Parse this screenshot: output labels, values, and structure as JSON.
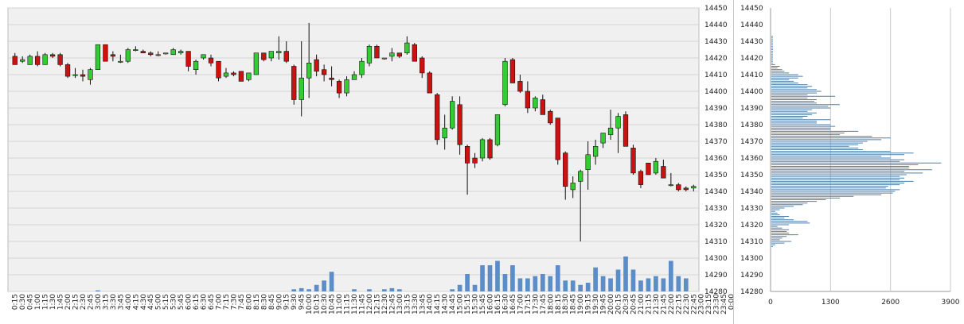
{
  "chart_data": [
    {
      "type": "candlestick",
      "ylim": [
        14280,
        14450
      ],
      "y_ticks": [
        14280,
        14290,
        14300,
        14310,
        14320,
        14330,
        14340,
        14350,
        14360,
        14370,
        14380,
        14390,
        14400,
        14410,
        14420,
        14430,
        14440,
        14450
      ],
      "x_labels": [
        "0:15",
        "0:30",
        "0:45",
        "1:00",
        "1:15",
        "1:30",
        "1:45",
        "2:00",
        "2:15",
        "2:30",
        "2:45",
        "3:00",
        "3:15",
        "3:30",
        "3:45",
        "4:00",
        "4:15",
        "4:30",
        "4:45",
        "5:00",
        "5:15",
        "5:30",
        "5:45",
        "6:00",
        "6:15",
        "6:30",
        "6:45",
        "7:00",
        "7:15",
        "7:30",
        "7:45",
        "8:00",
        "8:15",
        "8:30",
        "8:45",
        "9:00",
        "9:15",
        "9:30",
        "9:45",
        "10:00",
        "10:15",
        "10:30",
        "10:45",
        "11:00",
        "11:15",
        "11:30",
        "11:45",
        "12:00",
        "12:15",
        "12:30",
        "12:45",
        "13:00",
        "13:15",
        "13:30",
        "13:45",
        "14:00",
        "14:15",
        "14:30",
        "14:45",
        "15:00",
        "15:15",
        "15:30",
        "15:45",
        "16:00",
        "16:15",
        "16:30",
        "16:45",
        "17:00",
        "17:15",
        "17:30",
        "17:45",
        "18:00",
        "18:15",
        "18:30",
        "18:45",
        "19:00",
        "19:15",
        "19:30",
        "19:45",
        "20:00",
        "20:15",
        "20:30",
        "20:45",
        "21:00",
        "21:15",
        "21:30",
        "21:45",
        "22:00",
        "22:15",
        "22:30",
        "22:45",
        "23:00",
        "23:15",
        "23:30",
        "23:45",
        "0:00"
      ],
      "candles": [
        {
          "o": 14421,
          "h": 14423,
          "l": 14416,
          "c": 14416
        },
        {
          "o": 14418,
          "h": 14421,
          "l": 14417,
          "c": 14419
        },
        {
          "o": 14416,
          "h": 14422,
          "l": 14416,
          "c": 14421
        },
        {
          "o": 14421,
          "h": 14424,
          "l": 14415,
          "c": 14416
        },
        {
          "o": 14416,
          "h": 14423,
          "l": 14416,
          "c": 14422
        },
        {
          "o": 14422,
          "h": 14423,
          "l": 14420,
          "c": 14421
        },
        {
          "o": 14422,
          "h": 14423,
          "l": 14415,
          "c": 14416
        },
        {
          "o": 14416,
          "h": 14417,
          "l": 14408,
          "c": 14409
        },
        {
          "o": 14410,
          "h": 14414,
          "l": 14408,
          "c": 14410
        },
        {
          "o": 14410,
          "h": 14413,
          "l": 14406,
          "c": 14409
        },
        {
          "o": 14407,
          "h": 14414,
          "l": 14404,
          "c": 14413
        },
        {
          "o": 14413,
          "h": 14428,
          "l": 14413,
          "c": 14428
        },
        {
          "o": 14428,
          "h": 14428,
          "l": 14418,
          "c": 14418
        },
        {
          "o": 14422,
          "h": 14424,
          "l": 14418,
          "c": 14421
        },
        {
          "o": 14418,
          "h": 14422,
          "l": 14417,
          "c": 14418
        },
        {
          "o": 14418,
          "h": 14426,
          "l": 14417,
          "c": 14425
        },
        {
          "o": 14425,
          "h": 14427,
          "l": 14424,
          "c": 14425
        },
        {
          "o": 14424,
          "h": 14425,
          "l": 14423,
          "c": 14423
        },
        {
          "o": 14423,
          "h": 14424,
          "l": 14421,
          "c": 14422
        },
        {
          "o": 14422,
          "h": 14424,
          "l": 14421,
          "c": 14422
        },
        {
          "o": 14423,
          "h": 14423,
          "l": 14422,
          "c": 14423
        },
        {
          "o": 14422,
          "h": 14426,
          "l": 14422,
          "c": 14425
        },
        {
          "o": 14423,
          "h": 14425,
          "l": 14422,
          "c": 14424
        },
        {
          "o": 14424,
          "h": 14424,
          "l": 14412,
          "c": 14415
        },
        {
          "o": 14413,
          "h": 14419,
          "l": 14410,
          "c": 14418
        },
        {
          "o": 14420,
          "h": 14422,
          "l": 14419,
          "c": 14422
        },
        {
          "o": 14420,
          "h": 14422,
          "l": 14415,
          "c": 14417
        },
        {
          "o": 14418,
          "h": 14418,
          "l": 14406,
          "c": 14408
        },
        {
          "o": 14409,
          "h": 14414,
          "l": 14408,
          "c": 14411
        },
        {
          "o": 14411,
          "h": 14412,
          "l": 14409,
          "c": 14410
        },
        {
          "o": 14412,
          "h": 14412,
          "l": 14406,
          "c": 14406
        },
        {
          "o": 14407,
          "h": 14411,
          "l": 14406,
          "c": 14411
        },
        {
          "o": 14410,
          "h": 14423,
          "l": 14410,
          "c": 14423
        },
        {
          "o": 14423,
          "h": 14423,
          "l": 14418,
          "c": 14419
        },
        {
          "o": 14420,
          "h": 14424,
          "l": 14418,
          "c": 14424
        },
        {
          "o": 14423,
          "h": 14433,
          "l": 14419,
          "c": 14424
        },
        {
          "o": 14424,
          "h": 14430,
          "l": 14417,
          "c": 14418
        },
        {
          "o": 14415,
          "h": 14416,
          "l": 14392,
          "c": 14395
        },
        {
          "o": 14395,
          "h": 14430,
          "l": 14385,
          "c": 14408
        },
        {
          "o": 14408,
          "h": 14441,
          "l": 14396,
          "c": 14417
        },
        {
          "o": 14419,
          "h": 14422,
          "l": 14409,
          "c": 14412
        },
        {
          "o": 14413,
          "h": 14416,
          "l": 14406,
          "c": 14410
        },
        {
          "o": 14408,
          "h": 14415,
          "l": 14403,
          "c": 14407
        },
        {
          "o": 14406,
          "h": 14407,
          "l": 14396,
          "c": 14399
        },
        {
          "o": 14399,
          "h": 14409,
          "l": 14397,
          "c": 14407
        },
        {
          "o": 14407,
          "h": 14412,
          "l": 14407,
          "c": 14410
        },
        {
          "o": 14410,
          "h": 14420,
          "l": 14408,
          "c": 14418
        },
        {
          "o": 14417,
          "h": 14428,
          "l": 14415,
          "c": 14427
        },
        {
          "o": 14427,
          "h": 14428,
          "l": 14420,
          "c": 14420
        },
        {
          "o": 14420,
          "h": 14420,
          "l": 14419,
          "c": 14420
        },
        {
          "o": 14421,
          "h": 14426,
          "l": 14418,
          "c": 14423
        },
        {
          "o": 14423,
          "h": 14423,
          "l": 14420,
          "c": 14421
        },
        {
          "o": 14423,
          "h": 14433,
          "l": 14422,
          "c": 14429
        },
        {
          "o": 14428,
          "h": 14429,
          "l": 14418,
          "c": 14418
        },
        {
          "o": 14420,
          "h": 14421,
          "l": 14408,
          "c": 14411
        },
        {
          "o": 14411,
          "h": 14412,
          "l": 14399,
          "c": 14399
        },
        {
          "o": 14398,
          "h": 14399,
          "l": 14368,
          "c": 14371
        },
        {
          "o": 14372,
          "h": 14386,
          "l": 14365,
          "c": 14378
        },
        {
          "o": 14378,
          "h": 14397,
          "l": 14377,
          "c": 14394
        },
        {
          "o": 14392,
          "h": 14397,
          "l": 14362,
          "c": 14368
        },
        {
          "o": 14367,
          "h": 14368,
          "l": 14338,
          "c": 14357
        },
        {
          "o": 14360,
          "h": 14363,
          "l": 14354,
          "c": 14357
        },
        {
          "o": 14360,
          "h": 14372,
          "l": 14358,
          "c": 14371
        },
        {
          "o": 14371,
          "h": 14372,
          "l": 14359,
          "c": 14360
        },
        {
          "o": 14368,
          "h": 14386,
          "l": 14367,
          "c": 14386
        },
        {
          "o": 14392,
          "h": 14420,
          "l": 14391,
          "c": 14418
        },
        {
          "o": 14419,
          "h": 14420,
          "l": 14405,
          "c": 14405
        },
        {
          "o": 14406,
          "h": 14410,
          "l": 14399,
          "c": 14400
        },
        {
          "o": 14400,
          "h": 14406,
          "l": 14387,
          "c": 14390
        },
        {
          "o": 14390,
          "h": 14397,
          "l": 14388,
          "c": 14396
        },
        {
          "o": 14395,
          "h": 14398,
          "l": 14386,
          "c": 14386
        },
        {
          "o": 14388,
          "h": 14389,
          "l": 14380,
          "c": 14381
        },
        {
          "o": 14384,
          "h": 14384,
          "l": 14356,
          "c": 14359
        },
        {
          "o": 14363,
          "h": 14364,
          "l": 14335,
          "c": 14343
        },
        {
          "o": 14341,
          "h": 14349,
          "l": 14336,
          "c": 14345
        },
        {
          "o": 14346,
          "h": 14353,
          "l": 14310,
          "c": 14352
        },
        {
          "o": 14353,
          "h": 14370,
          "l": 14341,
          "c": 14362
        },
        {
          "o": 14361,
          "h": 14371,
          "l": 14356,
          "c": 14367
        },
        {
          "o": 14369,
          "h": 14375,
          "l": 14366,
          "c": 14375
        },
        {
          "o": 14374,
          "h": 14389,
          "l": 14371,
          "c": 14378
        },
        {
          "o": 14378,
          "h": 14387,
          "l": 14363,
          "c": 14385
        },
        {
          "o": 14386,
          "h": 14388,
          "l": 14367,
          "c": 14367
        },
        {
          "o": 14366,
          "h": 14368,
          "l": 14350,
          "c": 14351
        },
        {
          "o": 14352,
          "h": 14353,
          "l": 14342,
          "c": 14344
        },
        {
          "o": 14357,
          "h": 14357,
          "l": 14350,
          "c": 14350
        },
        {
          "o": 14351,
          "h": 14360,
          "l": 14350,
          "c": 14358
        },
        {
          "o": 14355,
          "h": 14359,
          "l": 14348,
          "c": 14348
        },
        {
          "o": 14344,
          "h": 14351,
          "l": 14343,
          "c": 14344
        },
        {
          "o": 14344,
          "h": 14345,
          "l": 14340,
          "c": 14341
        },
        {
          "o": 14342,
          "h": 14343,
          "l": 14340,
          "c": 14341
        },
        {
          "o": 14342,
          "h": 14344,
          "l": 14340,
          "c": 14343
        }
      ],
      "volume": [
        0,
        0,
        0,
        0,
        0,
        0,
        0,
        0,
        0,
        0,
        0,
        0.5,
        0,
        0,
        0,
        0,
        0,
        0,
        0,
        0,
        0,
        0,
        0,
        0,
        0,
        0,
        0,
        0,
        0,
        0,
        0,
        0,
        0,
        0,
        0,
        0,
        0,
        1,
        1.5,
        1,
        3,
        5,
        9,
        0,
        0,
        1,
        0,
        1,
        0,
        1,
        1.5,
        1,
        0,
        0,
        0,
        0,
        0,
        0,
        1,
        3,
        8,
        3,
        12,
        12,
        14,
        8,
        12,
        6,
        6,
        7,
        8,
        7,
        12,
        5,
        5,
        3,
        4,
        11,
        7,
        6,
        10,
        16,
        10,
        5,
        6,
        7,
        6,
        14,
        7,
        6
      ],
      "volume_offsets": [
        0,
        0,
        0,
        0,
        0,
        0,
        0,
        0,
        0,
        0,
        0,
        0,
        0,
        0,
        0,
        0,
        0,
        0,
        0,
        0,
        0,
        0,
        0,
        0,
        0,
        0,
        0,
        0,
        0,
        0,
        0,
        0,
        0,
        0,
        0,
        0,
        0,
        0,
        0,
        0,
        0,
        0,
        0,
        0,
        0,
        0,
        0,
        0,
        0,
        0,
        0,
        0,
        0,
        0,
        0,
        0,
        0,
        0,
        0,
        0,
        0,
        0,
        0,
        0,
        0,
        0,
        0,
        0,
        0,
        0,
        0,
        0,
        0,
        0,
        0,
        0,
        0,
        0,
        0,
        0,
        0,
        0,
        0,
        0,
        0,
        0,
        0,
        0,
        0,
        0
      ],
      "colors": {
        "up": "#33cc33",
        "down": "#cc1111",
        "volume": "#5b8dc8",
        "plot_bg": "#f0f0f0",
        "grid": "#d4d4d4"
      }
    },
    {
      "type": "bar-horizontal",
      "xlim": [
        0,
        3900
      ],
      "x_ticks": [
        "0",
        "1300",
        "2600",
        "3900"
      ],
      "y_ticks": [
        14280,
        14290,
        14300,
        14310,
        14320,
        14330,
        14340,
        14350,
        14360,
        14370,
        14380,
        14390,
        14400,
        14410,
        14420,
        14430,
        14440,
        14450
      ],
      "ylim": [
        14280,
        14450
      ],
      "price_start": 14307,
      "price_step": 1,
      "values": [
        50,
        100,
        300,
        450,
        200,
        250,
        350,
        600,
        400,
        350,
        400,
        250,
        150,
        400,
        850,
        800,
        500,
        300,
        400,
        200,
        150,
        100,
        200,
        300,
        500,
        700,
        800,
        1000,
        1200,
        1500,
        1800,
        2400,
        2650,
        2700,
        2800,
        2500,
        2550,
        2800,
        2900,
        3100,
        2800,
        2900,
        2800,
        2950,
        3300,
        2900,
        3500,
        3000,
        3000,
        3200,
        3700,
        2800,
        2900,
        2600,
        2400,
        2900,
        3100,
        2600,
        2000,
        1900,
        1700,
        1900,
        2000,
        2100,
        2400,
        2600,
        2200,
        1500,
        1600,
        1900,
        1300,
        1300,
        1400,
        1300,
        1000,
        1000,
        1300,
        700,
        800,
        900,
        1000,
        800,
        900,
        1300,
        1250,
        1500,
        1000,
        950,
        1000,
        800,
        1400,
        800,
        1000,
        1100,
        1000,
        800,
        900,
        800,
        600,
        500,
        400,
        600,
        700,
        600,
        400,
        300,
        250,
        150,
        200,
        100,
        50,
        50,
        50,
        50,
        50,
        50,
        50,
        50,
        50,
        50,
        50,
        50,
        50,
        50,
        50,
        50,
        50
      ],
      "colors": {
        "bar": "#4f7fa8",
        "grid": "#c8c8c8"
      }
    }
  ]
}
